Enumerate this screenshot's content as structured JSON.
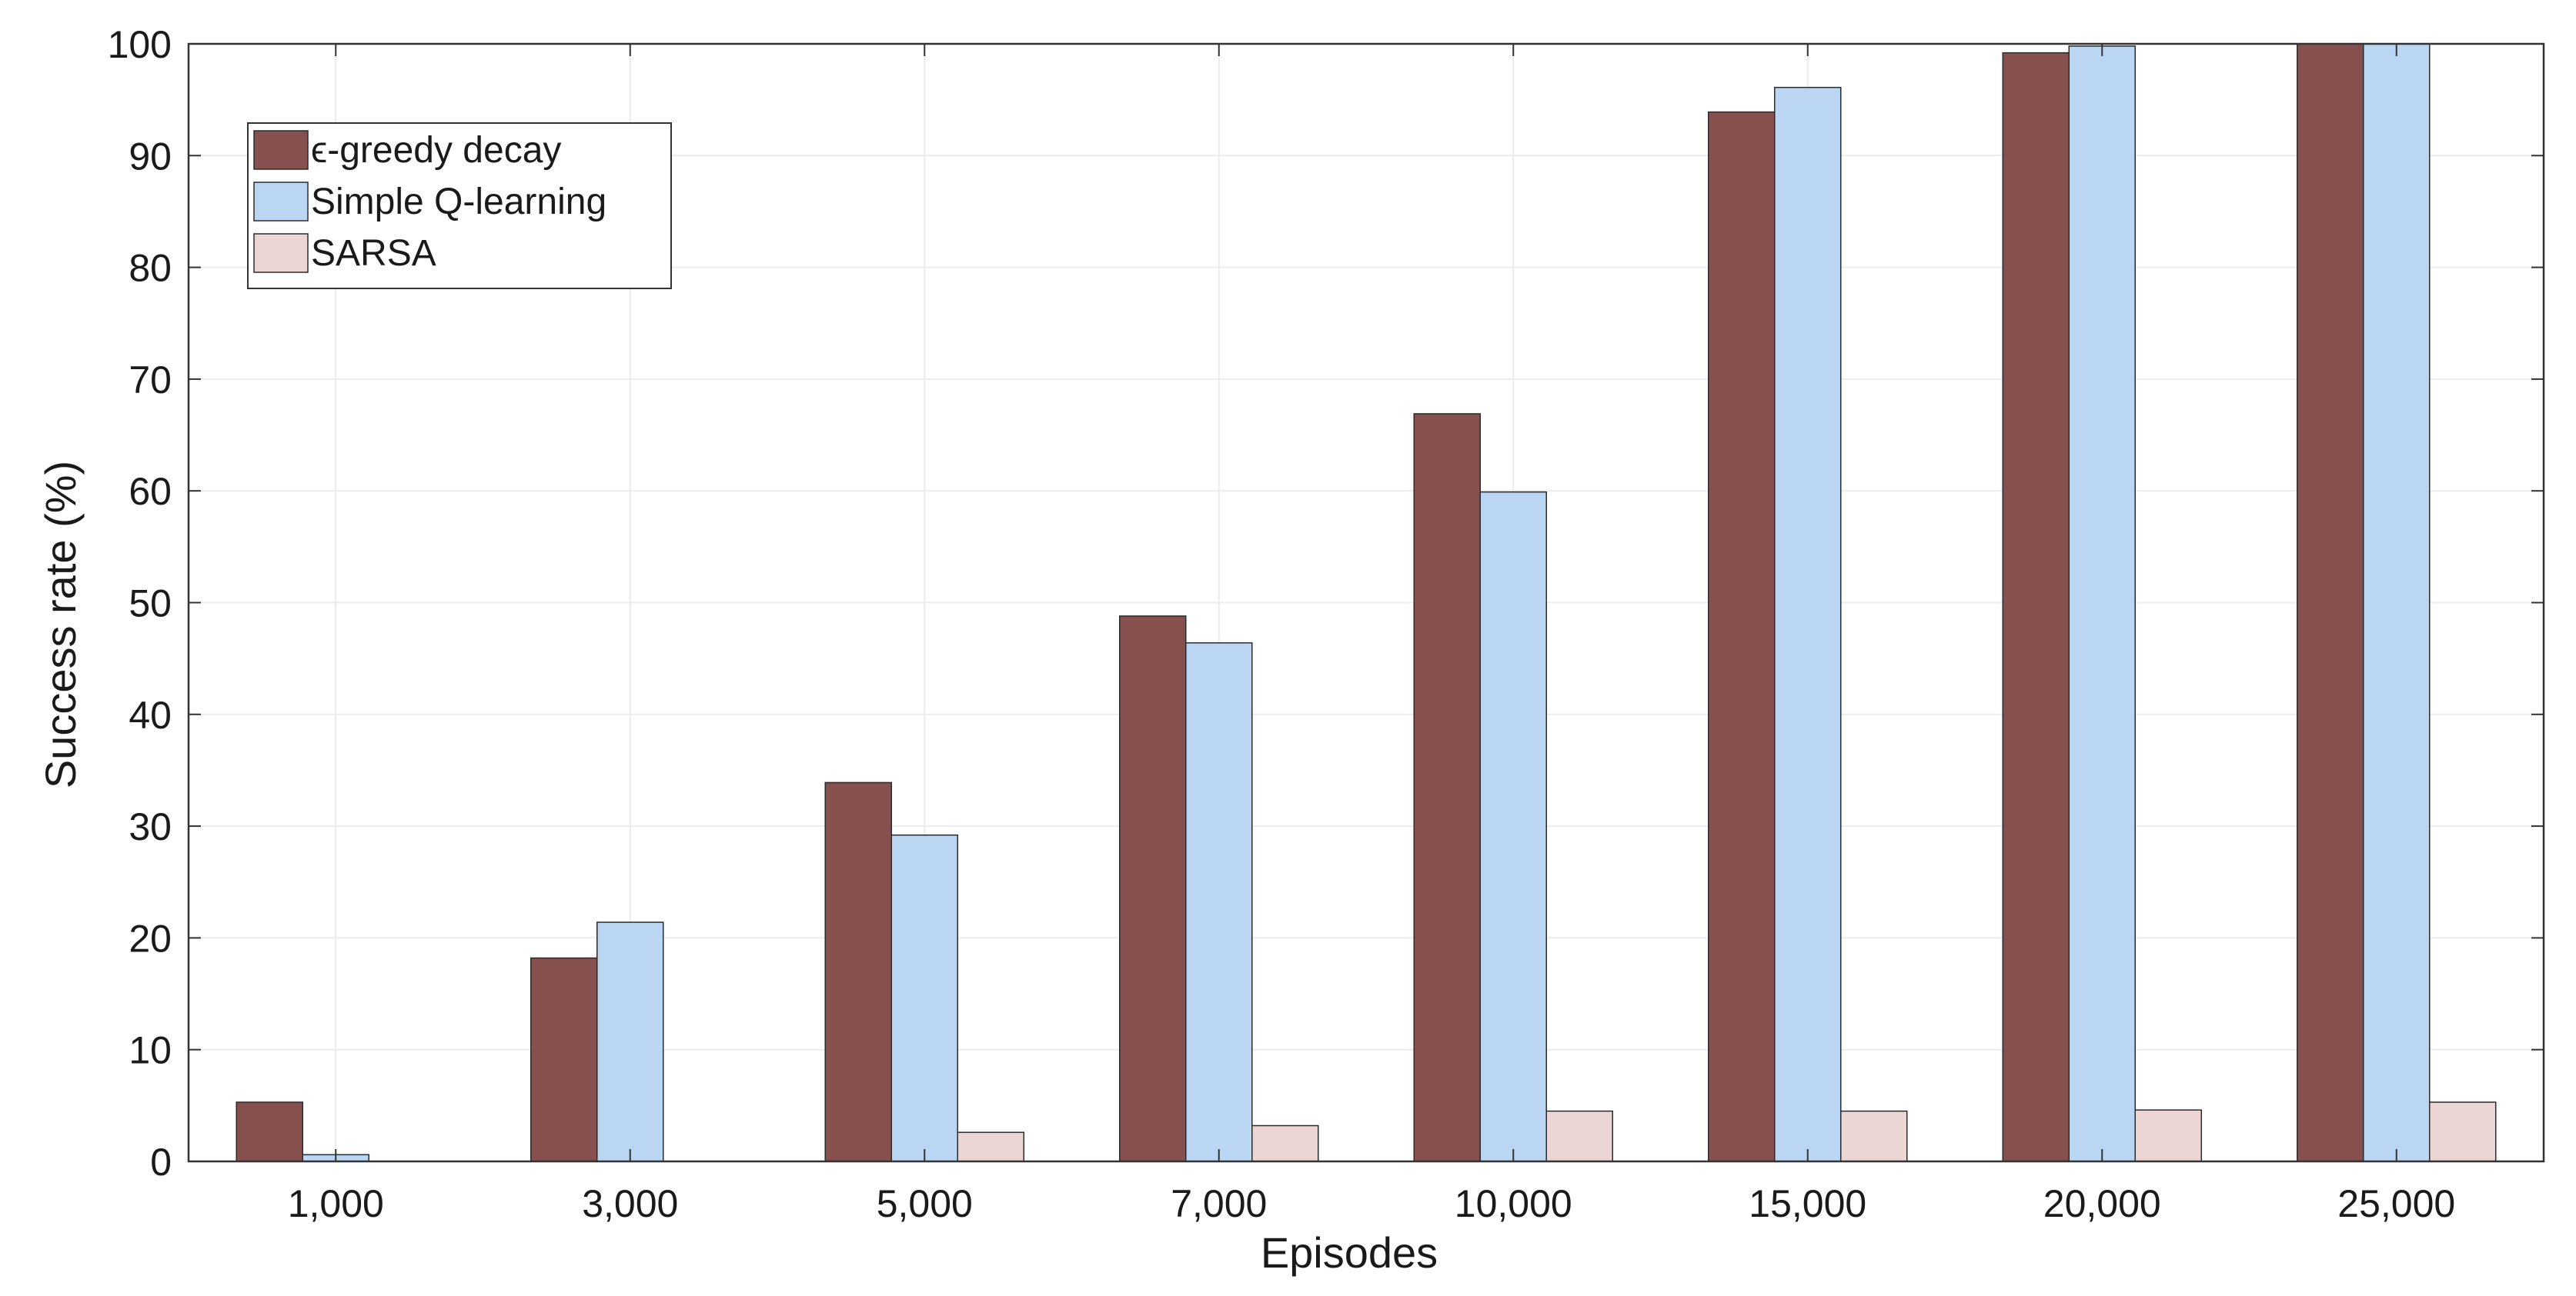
{
  "chart_data": {
    "type": "bar",
    "xlabel": "Episodes",
    "ylabel": "Success rate (%)",
    "ylim": [
      0,
      100
    ],
    "yticks": [
      0,
      10,
      20,
      30,
      40,
      50,
      60,
      70,
      80,
      90,
      100
    ],
    "grid": true,
    "legend_position": "top-left",
    "categories": [
      "1,000",
      "3,000",
      "5,000",
      "7,000",
      "10,000",
      "15,000",
      "20,000",
      "25,000"
    ],
    "series": [
      {
        "name": "ϵ-greedy decay",
        "color": "#86504f",
        "values": [
          5.3,
          18.2,
          33.9,
          48.8,
          66.9,
          93.9,
          99.2,
          100
        ]
      },
      {
        "name": "Simple Q-learning",
        "color": "#bad6f2",
        "values": [
          0.6,
          21.4,
          29.2,
          46.4,
          59.9,
          96.1,
          99.8,
          100
        ]
      },
      {
        "name": "SARSA",
        "color": "#ecd5d5",
        "values": [
          0,
          0,
          2.6,
          3.2,
          4.5,
          4.5,
          4.6,
          5.3
        ]
      }
    ]
  }
}
